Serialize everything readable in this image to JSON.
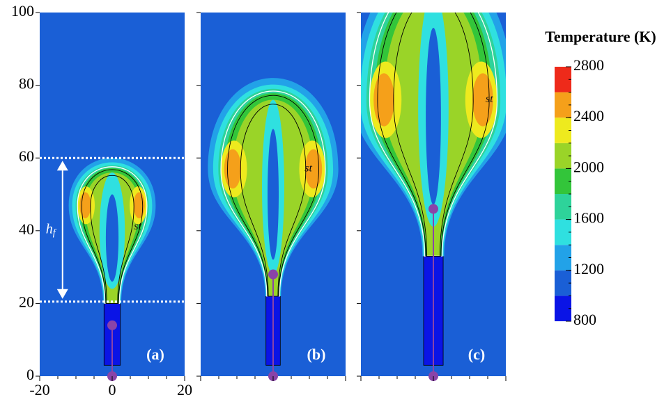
{
  "chart_data": [
    {
      "type": "contour",
      "label": "(a)",
      "annotation": "st",
      "xlim": [
        -20,
        20
      ],
      "xticks": [
        -20,
        0,
        20
      ],
      "ylim": [
        0,
        100
      ],
      "yticks": [
        0,
        20,
        40,
        60,
        80,
        100
      ],
      "markers": {
        "x": [
          0,
          0
        ],
        "y": [
          0,
          14
        ]
      },
      "hlines": [
        20.5,
        60
      ],
      "height_label": {
        "symbol": "h",
        "subscript": "f"
      }
    },
    {
      "type": "contour",
      "label": "(b)",
      "annotation": "st",
      "xlim": [
        -20,
        20
      ],
      "ylim": [
        0,
        100
      ],
      "markers": {
        "x": [
          0,
          0
        ],
        "y": [
          0,
          28
        ]
      }
    },
    {
      "type": "contour",
      "label": "(c)",
      "annotation": "st",
      "xlim": [
        -20,
        20
      ],
      "ylim": [
        0,
        100
      ],
      "markers": {
        "x": [
          0,
          0
        ],
        "y": [
          0,
          46
        ]
      }
    }
  ],
  "colorbar": {
    "title": "Temperature (K)",
    "lim": [
      800,
      2800
    ],
    "ticks": [
      800,
      1200,
      1600,
      2000,
      2400,
      2800
    ],
    "colors": [
      "#0a14e6",
      "#1a5fd6",
      "#22a2e8",
      "#2fe0e0",
      "#2ed39a",
      "#33c53a",
      "#9ad428",
      "#eeea1e",
      "#f5a01a",
      "#ee2a1a"
    ]
  }
}
